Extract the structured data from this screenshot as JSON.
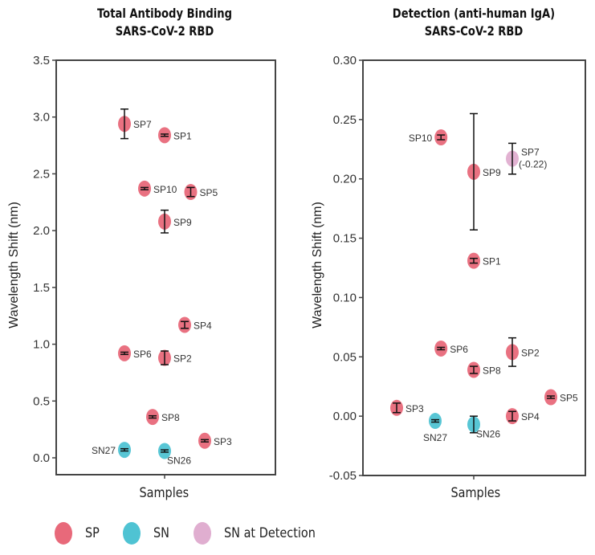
{
  "colors": {
    "SP": "#e8697a",
    "SN": "#4fc3d3",
    "SN_at_Detection": "#e0aed0",
    "axis": "#444444",
    "errorbar": "#111111"
  },
  "legend": [
    {
      "key": "SP",
      "label": "SP"
    },
    {
      "key": "SN",
      "label": "SN"
    },
    {
      "key": "SN_at_Detection",
      "label": "SN at Detection"
    }
  ],
  "chart_data": [
    {
      "type": "scatter",
      "title": "Total Antibody Binding",
      "subtitle": "SARS-CoV-2 RBD",
      "xlabel": "Samples",
      "ylabel": "Wavelength Shift (nm)",
      "ylim": [
        0.0,
        3.5
      ],
      "yticks": [
        "0.0",
        "0.5",
        "1.0",
        "1.5",
        "2.0",
        "2.5",
        "3.0",
        "3.5"
      ],
      "grid": false,
      "points": [
        {
          "label": "SP7",
          "group": "SP",
          "x": -1.0,
          "y": 2.94,
          "err": 0.13,
          "label_side": "right"
        },
        {
          "label": "SP1",
          "group": "SP",
          "x": 0.0,
          "y": 2.84,
          "err": 0.01,
          "label_side": "right"
        },
        {
          "label": "SP10",
          "group": "SP",
          "x": -0.5,
          "y": 2.37,
          "err": 0.01,
          "label_side": "right"
        },
        {
          "label": "SP5",
          "group": "SP",
          "x": 0.65,
          "y": 2.34,
          "err": 0.04,
          "label_side": "right"
        },
        {
          "label": "SP9",
          "group": "SP",
          "x": 0.0,
          "y": 2.08,
          "err": 0.1,
          "label_side": "right"
        },
        {
          "label": "SP4",
          "group": "SP",
          "x": 0.5,
          "y": 1.17,
          "err": 0.03,
          "label_side": "right"
        },
        {
          "label": "SP6",
          "group": "SP",
          "x": -1.0,
          "y": 0.92,
          "err": 0.01,
          "label_side": "right"
        },
        {
          "label": "SP2",
          "group": "SP",
          "x": 0.0,
          "y": 0.88,
          "err": 0.06,
          "label_side": "right"
        },
        {
          "label": "SP8",
          "group": "SP",
          "x": -0.3,
          "y": 0.36,
          "err": 0.01,
          "label_side": "right"
        },
        {
          "label": "SP3",
          "group": "SP",
          "x": 1.0,
          "y": 0.15,
          "err": 0.01,
          "label_side": "right"
        },
        {
          "label": "SN27",
          "group": "SN",
          "x": -1.0,
          "y": 0.07,
          "err": 0.01,
          "label_side": "left"
        },
        {
          "label": "SN26",
          "group": "SN",
          "x": 0.0,
          "y": 0.06,
          "err": 0.01,
          "label_side": "below-right"
        }
      ]
    },
    {
      "type": "scatter",
      "title": "Detection (anti-human IgA)",
      "subtitle": "SARS-CoV-2 RBD",
      "xlabel": "Samples",
      "ylabel": "Wavelength Shift (nm)",
      "ylim": [
        -0.05,
        0.3
      ],
      "yticks": [
        "-0.05",
        "0.00",
        "0.05",
        "0.10",
        "0.15",
        "0.20",
        "0.25",
        "0.30"
      ],
      "grid": false,
      "points": [
        {
          "label": "SP10",
          "group": "SP",
          "x": -0.85,
          "y": 0.235,
          "err": 0.002,
          "label_side": "left"
        },
        {
          "label": "SP9",
          "group": "SP",
          "x": 0.0,
          "y": 0.206,
          "err": 0.049,
          "label_side": "right"
        },
        {
          "label": "SP7",
          "sublabel": "(-0.22)",
          "group": "SN_at_Detection",
          "x": 1.0,
          "y": 0.217,
          "err": 0.013,
          "label_side": "right"
        },
        {
          "label": "SP1",
          "group": "SP",
          "x": 0.0,
          "y": 0.131,
          "err": 0.002,
          "label_side": "right"
        },
        {
          "label": "SP6",
          "group": "SP",
          "x": -0.85,
          "y": 0.057,
          "err": 0.001,
          "label_side": "right"
        },
        {
          "label": "SP2",
          "group": "SP",
          "x": 1.0,
          "y": 0.054,
          "err": 0.012,
          "label_side": "right"
        },
        {
          "label": "SP8",
          "group": "SP",
          "x": 0.0,
          "y": 0.039,
          "err": 0.003,
          "label_side": "right"
        },
        {
          "label": "SP5",
          "group": "SP",
          "x": 2.0,
          "y": 0.016,
          "err": 0.001,
          "label_side": "right"
        },
        {
          "label": "SP3",
          "group": "SP",
          "x": -2.0,
          "y": 0.007,
          "err": 0.004,
          "label_side": "right"
        },
        {
          "label": "SP4",
          "group": "SP",
          "x": 1.0,
          "y": 0.0,
          "err": 0.004,
          "label_side": "right"
        },
        {
          "label": "SN27",
          "group": "SN",
          "x": -1.0,
          "y": -0.004,
          "err": 0.001,
          "label_side": "below"
        },
        {
          "label": "SN26",
          "group": "SN",
          "x": 0.0,
          "y": -0.007,
          "err": 0.007,
          "label_side": "below-right"
        }
      ]
    }
  ]
}
